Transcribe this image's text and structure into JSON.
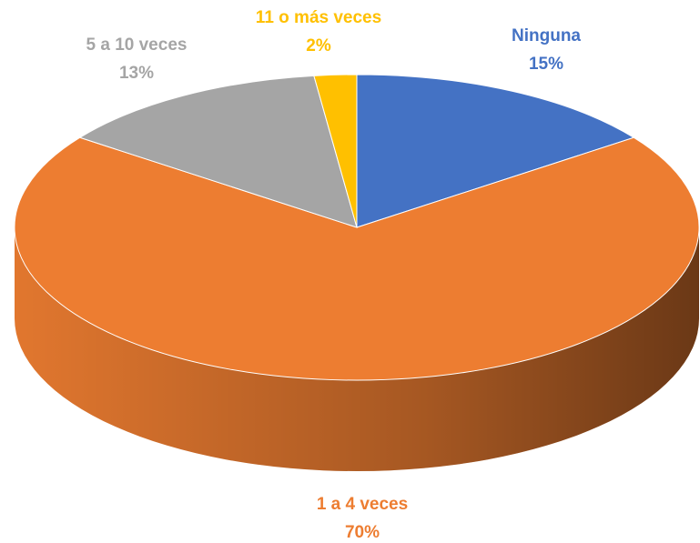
{
  "chart_data": {
    "type": "pie",
    "categories": [
      "Ninguna",
      "1 a 4 veces",
      "5 a 10 veces",
      "11 o más veces"
    ],
    "values": [
      15,
      70,
      13,
      2
    ],
    "value_labels": [
      "15%",
      "70%",
      "13%",
      "2%"
    ],
    "colors": [
      "#4472c4",
      "#ed7d31",
      "#a5a5a5",
      "#ffc000"
    ]
  }
}
